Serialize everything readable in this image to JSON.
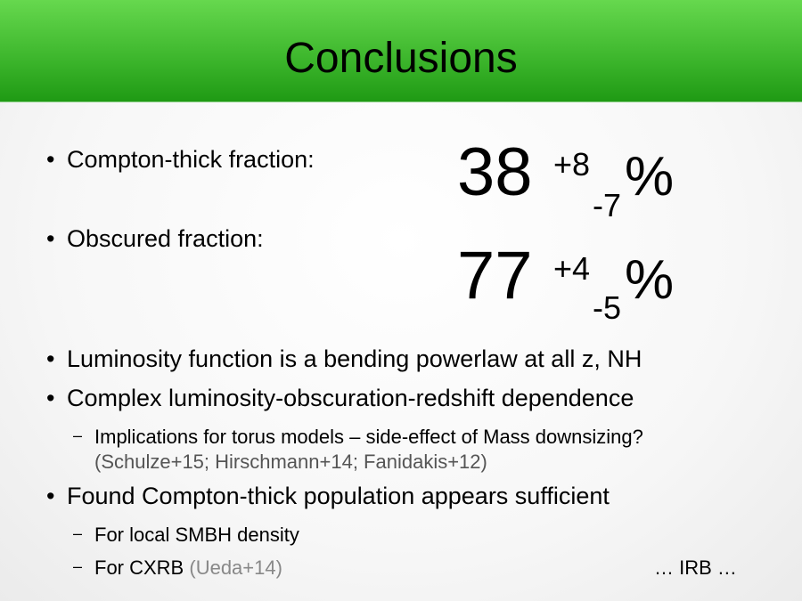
{
  "header": {
    "title": "Conclusions"
  },
  "fractions": {
    "compton": {
      "label": "Compton-thick fraction:",
      "value": "38",
      "plus": "+8",
      "minus": "-7",
      "unit": "%"
    },
    "obscured": {
      "label": "Obscured fraction:",
      "value": "77",
      "plus": "+4",
      "minus": "-5",
      "unit": "%"
    }
  },
  "bullets": {
    "b3": "Luminosity function is a bending powerlaw at all z, NH",
    "b4": "Complex luminosity-obscuration-redshift dependence",
    "b4_sub1_line1": "Implications for torus models – side-effect of Mass downsizing?",
    "b4_sub1_line2": "(Schulze+15; Hirschmann+14; Fanidakis+12)",
    "b5": "Found Compton-thick population appears sufficient",
    "b5_sub1": "For local SMBH density",
    "b5_sub2_main": "For CXRB",
    "b5_sub2_ref": "(Ueda+14)",
    "irb": "… IRB …"
  },
  "glyphs": {
    "bullet": "•",
    "dash": "–"
  }
}
